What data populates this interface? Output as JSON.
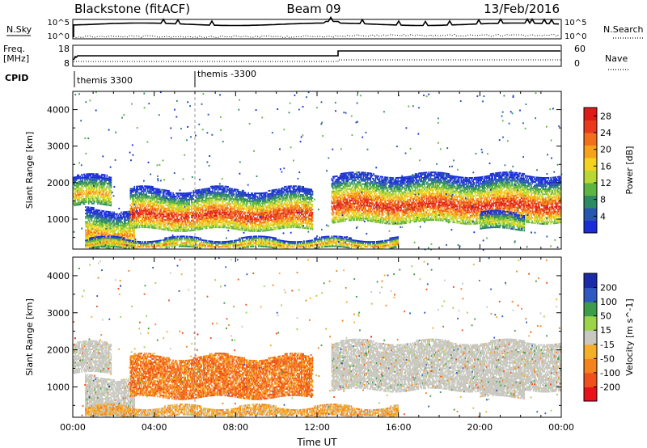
{
  "header": {
    "station": "Blackstone (fitACF)",
    "beam": "Beam 09",
    "date": "13/Feb/2016"
  },
  "top_panels": {
    "nsky_label": "N.Sky",
    "nsky_ticks": [
      "10^5",
      "10^0"
    ],
    "nsearch_label": "N.Search",
    "freq_label": "Freq.",
    "freq_unit": "[MHz]",
    "freq_ticks": [
      "18",
      "8"
    ],
    "nave_ticks": [
      "60",
      "0"
    ],
    "nave_label": "Nave",
    "cpid_label": "CPID",
    "cpid_segments": [
      {
        "label": "themis 3300",
        "start_hour": 0
      },
      {
        "label": "themis -3300",
        "start_hour": 6
      }
    ]
  },
  "chart_data": [
    {
      "type": "heatmap",
      "title": "",
      "xlabel": "Time UT",
      "ylabel": "Slant Range [km]",
      "xlim": [
        0,
        24
      ],
      "ylim": [
        180,
        4500
      ],
      "x_ticks": [
        "00:00",
        "04:00",
        "08:00",
        "12:00",
        "16:00",
        "20:00",
        "00:00"
      ],
      "y_ticks": [
        1000,
        2000,
        3000,
        4000
      ],
      "colorbar_label": "Power [dB]",
      "colorbar_ticks": [
        4,
        8,
        12,
        16,
        20,
        24,
        28
      ],
      "colorbar_range": [
        0,
        30
      ],
      "colormap": [
        "#1a2dd8",
        "#2656b0",
        "#2e8a62",
        "#5eb542",
        "#b9d835",
        "#f2d31e",
        "#f6a31a",
        "#f2701c",
        "#ea3a1c",
        "#e01b17"
      ],
      "regions": [
        {
          "t0": 0.0,
          "t1": 1.9,
          "r0": 1350,
          "r1": 2150,
          "peak": 20
        },
        {
          "t0": 0.6,
          "t1": 3.0,
          "r0": 180,
          "r1": 1250,
          "peak": 22
        },
        {
          "t0": 2.8,
          "t1": 11.8,
          "r0": 700,
          "r1": 1800,
          "peak": 28
        },
        {
          "t0": 12.7,
          "t1": 24.0,
          "r0": 900,
          "r1": 2200,
          "peak": 28
        },
        {
          "t0": 20.0,
          "t1": 22.2,
          "r0": 700,
          "r1": 1150,
          "peak": 16
        },
        {
          "t0": 0.6,
          "t1": 16.0,
          "r0": 180,
          "r1": 450,
          "peak": 22
        }
      ]
    },
    {
      "type": "heatmap",
      "title": "",
      "xlabel": "Time UT",
      "ylabel": "Slant Range [km]",
      "xlim": [
        0,
        24
      ],
      "ylim": [
        180,
        4500
      ],
      "x_ticks": [
        "00:00",
        "04:00",
        "08:00",
        "12:00",
        "16:00",
        "20:00",
        "00:00"
      ],
      "y_ticks": [
        1000,
        2000,
        3000,
        4000
      ],
      "colorbar_label": "Velocity [m s^-1]",
      "colorbar_ticks": [
        200,
        100,
        50,
        15,
        -15,
        -50,
        -100,
        -200
      ],
      "colorbar_range": [
        -250,
        250
      ],
      "colormap": [
        "#e8121a",
        "#f0501c",
        "#f4821d",
        "#f4ae2a",
        "#c8c8c0",
        "#9bd34a",
        "#3c9c49",
        "#2f59c0",
        "#1a2aa8"
      ],
      "regions": [
        {
          "t0": 0.0,
          "t1": 1.9,
          "r0": 1350,
          "r1": 2150,
          "value": 0
        },
        {
          "t0": 0.6,
          "t1": 3.0,
          "r0": 180,
          "r1": 1250,
          "value": 0
        },
        {
          "t0": 2.8,
          "t1": 11.8,
          "r0": 700,
          "r1": 1800,
          "value": -120
        },
        {
          "t0": 12.7,
          "t1": 24.0,
          "r0": 900,
          "r1": 2200,
          "value": 0
        },
        {
          "t0": 20.0,
          "t1": 22.2,
          "r0": 700,
          "r1": 1150,
          "value": 0
        },
        {
          "t0": 0.6,
          "t1": 16.0,
          "r0": 180,
          "r1": 450,
          "value": -60
        }
      ]
    }
  ]
}
